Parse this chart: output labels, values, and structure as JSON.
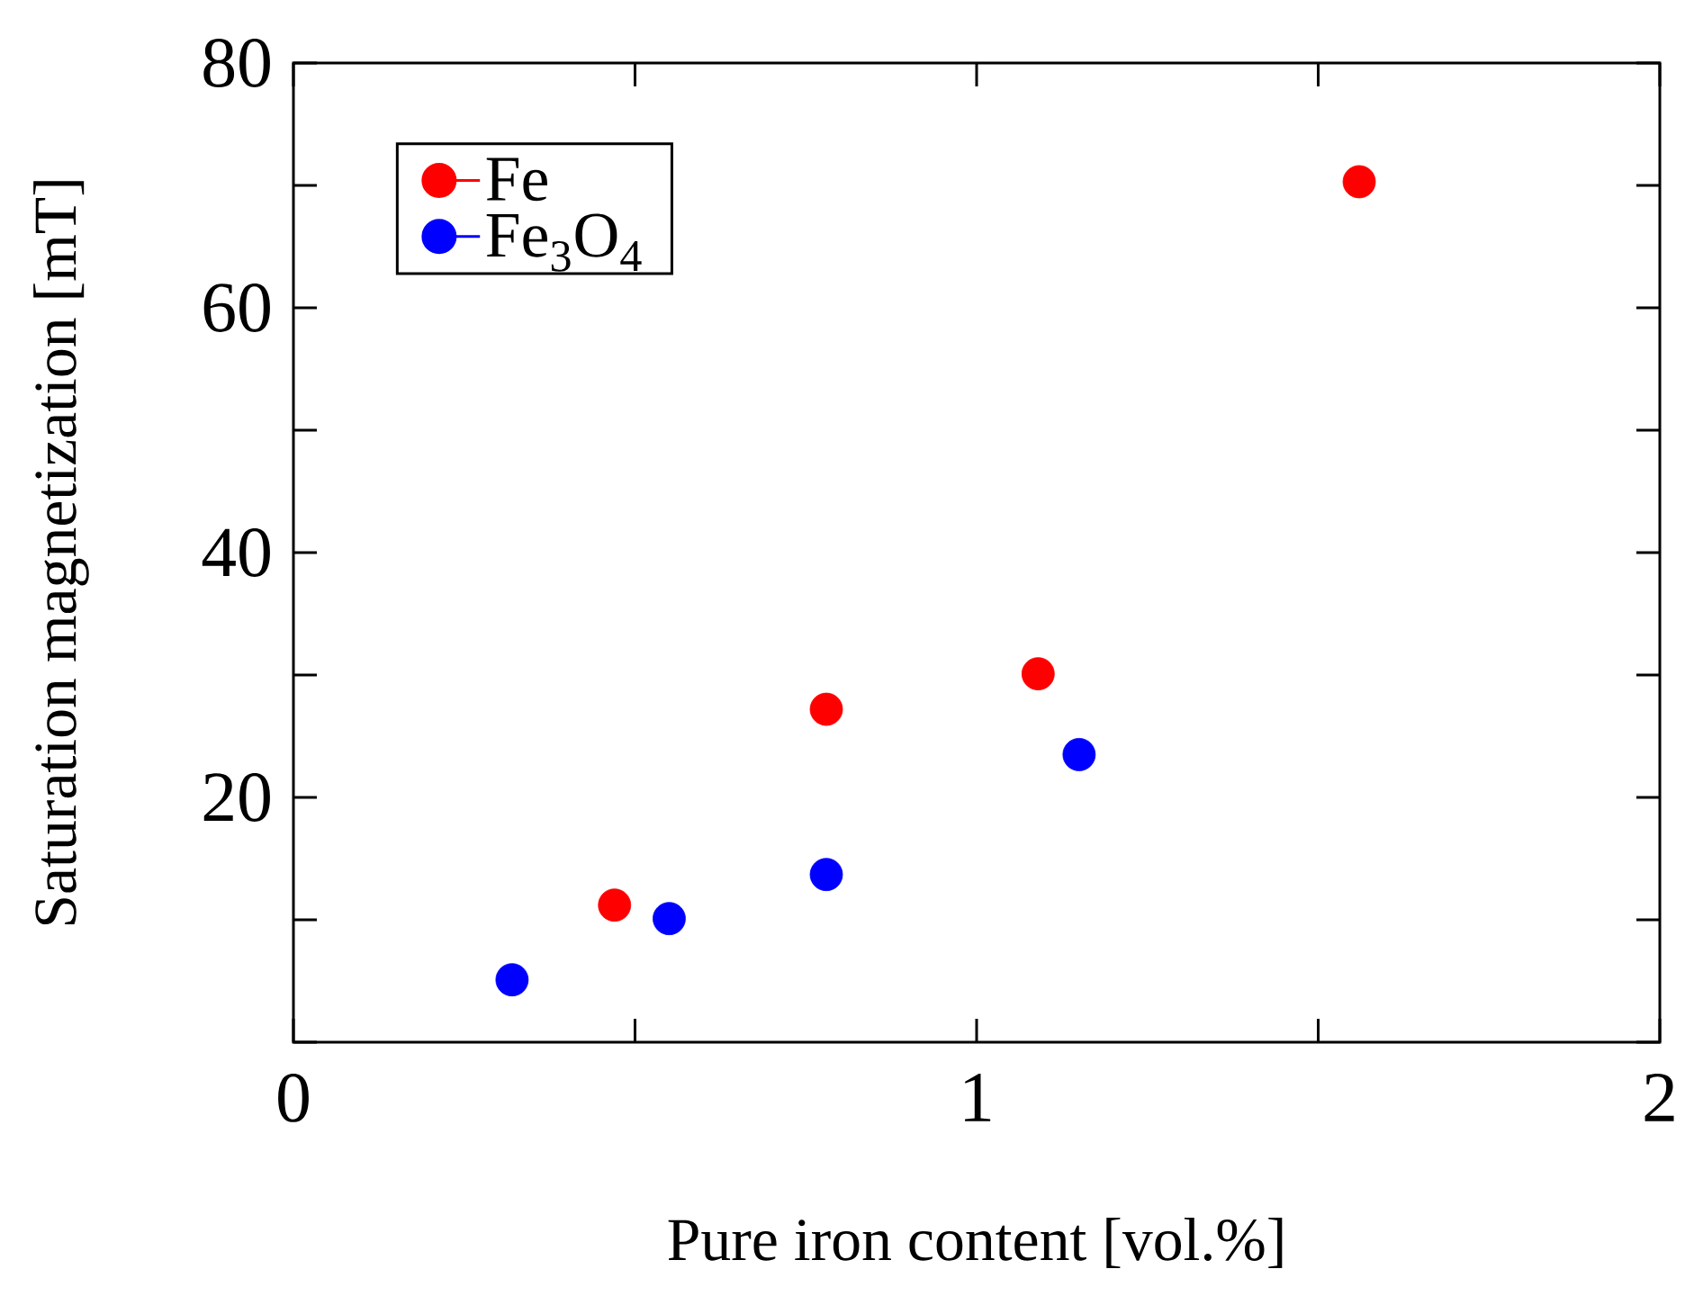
{
  "chart_data": {
    "type": "scatter",
    "xlabel": "Pure iron content [vol.%]",
    "ylabel": "Saturation magnetization [mT]",
    "xlim": [
      0,
      2
    ],
    "ylim": [
      0,
      80
    ],
    "xticks": [
      0,
      {
        "value": 0.5,
        "label": null
      },
      1,
      {
        "value": 1.5,
        "label": null
      },
      2
    ],
    "yticks": [
      {
        "value": 0,
        "label": null
      },
      {
        "value": 10,
        "label": null
      },
      20,
      {
        "value": 30,
        "label": null
      },
      40,
      {
        "value": 50,
        "label": null
      },
      60,
      {
        "value": 70,
        "label": null
      },
      80
    ],
    "marker": "circle",
    "legend": "top left",
    "grid": false,
    "series": [
      {
        "name": "Fe",
        "color": "#ff0000",
        "x": [
          0.47,
          0.78,
          1.09,
          1.56
        ],
        "values": [
          11.2,
          27.2,
          30.1,
          70.3
        ]
      },
      {
        "name": "Fe$_{3}$O$_{4}$",
        "color": "#0000ff",
        "x": [
          0.32,
          0.55,
          0.78,
          1.15
        ],
        "values": [
          5.1,
          10.1,
          13.7,
          23.5
        ]
      }
    ]
  }
}
